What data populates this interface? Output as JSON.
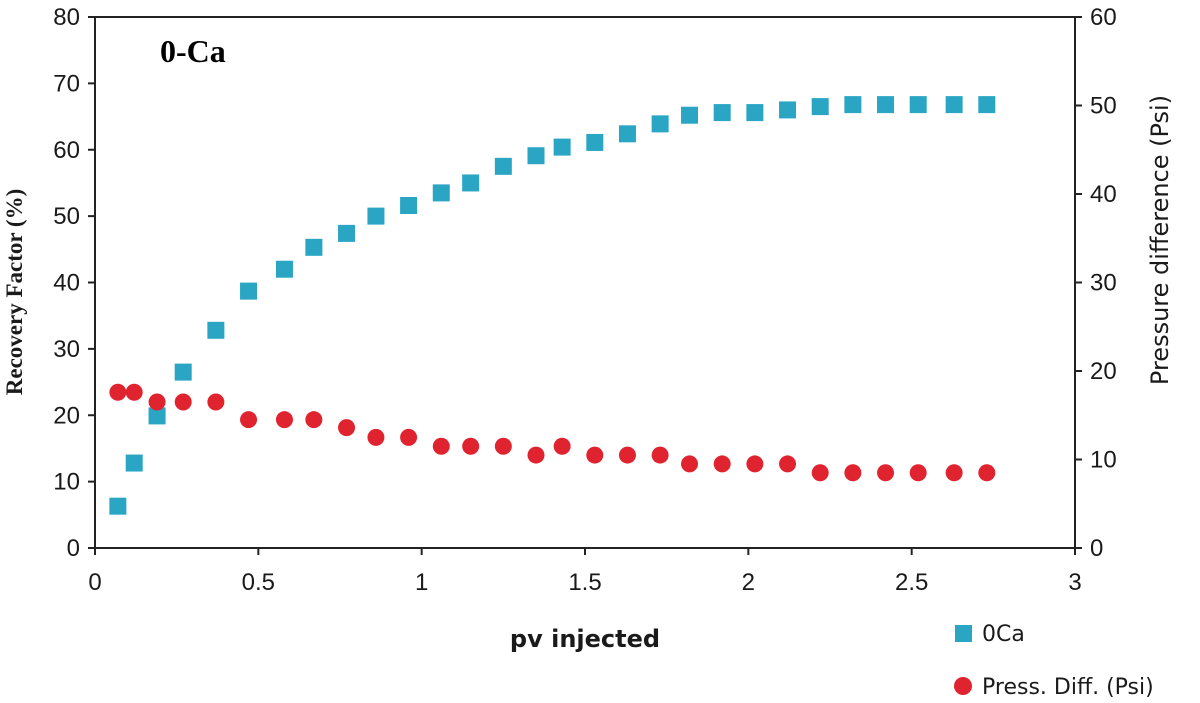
{
  "chart_data": {
    "type": "scatter",
    "title": "0-Ca",
    "xlabel": "pv injected",
    "ylabel": "Recovery Factor (%)",
    "y2label": "Pressure difference (Psi)",
    "xlim": [
      0,
      3
    ],
    "ylim": [
      0,
      80
    ],
    "y2lim": [
      0,
      60
    ],
    "x_ticks": [
      "0",
      "0.5",
      "1",
      "1.5",
      "2",
      "2.5",
      "3"
    ],
    "y_ticks": [
      "0",
      "10",
      "20",
      "30",
      "40",
      "50",
      "60",
      "70",
      "80"
    ],
    "y2_ticks": [
      "0",
      "10",
      "20",
      "30",
      "40",
      "50",
      "60"
    ],
    "grid": false,
    "legend_position": "bottom-right",
    "colors": {
      "series1": "#2aa6c4",
      "series2": "#e0242f"
    },
    "series": [
      {
        "name": "0Ca",
        "axis": "left",
        "marker": "square",
        "x": [
          0.07,
          0.12,
          0.19,
          0.27,
          0.37,
          0.47,
          0.58,
          0.67,
          0.77,
          0.86,
          0.96,
          1.06,
          1.15,
          1.25,
          1.35,
          1.43,
          1.53,
          1.63,
          1.73,
          1.82,
          1.92,
          2.02,
          2.12,
          2.22,
          2.32,
          2.42,
          2.52,
          2.63,
          2.73
        ],
        "y": [
          6.3,
          12.8,
          19.9,
          26.5,
          32.8,
          38.7,
          42.0,
          45.3,
          47.4,
          50.0,
          51.6,
          53.5,
          55.0,
          57.5,
          59.1,
          60.4,
          61.1,
          62.4,
          63.9,
          65.2,
          65.6,
          65.6,
          66.0,
          66.5,
          66.8,
          66.8,
          66.8,
          66.8,
          66.8
        ]
      },
      {
        "name": "Press. Diff. (Psi)",
        "axis": "right",
        "marker": "circle",
        "x": [
          0.07,
          0.12,
          0.19,
          0.27,
          0.37,
          0.47,
          0.58,
          0.67,
          0.77,
          0.86,
          0.96,
          1.06,
          1.15,
          1.25,
          1.35,
          1.43,
          1.53,
          1.63,
          1.73,
          1.82,
          1.92,
          2.02,
          2.12,
          2.22,
          2.32,
          2.42,
          2.52,
          2.63,
          2.73
        ],
        "y": [
          17.6,
          17.6,
          16.5,
          16.5,
          16.5,
          14.5,
          14.5,
          14.5,
          13.6,
          12.5,
          12.5,
          11.5,
          11.5,
          11.5,
          10.5,
          11.5,
          10.5,
          10.5,
          10.5,
          9.5,
          9.5,
          9.5,
          9.5,
          8.5,
          8.5,
          8.5,
          8.5,
          8.5,
          8.5
        ]
      }
    ]
  }
}
